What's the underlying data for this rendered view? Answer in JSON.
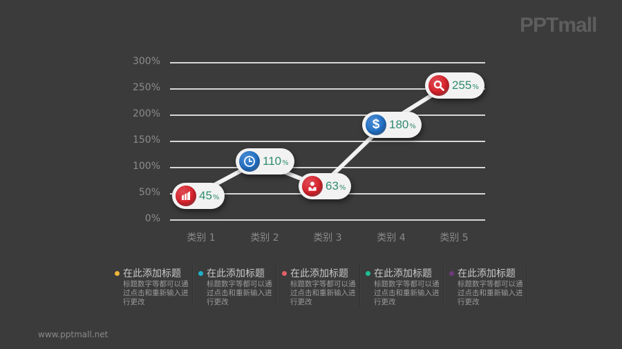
{
  "logo": "PPTmall",
  "footer": "www.pptmall.net",
  "chart_data": {
    "type": "line",
    "title": "",
    "xlabel": "",
    "ylabel": "",
    "categories": [
      "类别 1",
      "类别 2",
      "类别 3",
      "类别 4",
      "类别 5"
    ],
    "values": [
      45,
      110,
      63,
      180,
      255
    ],
    "value_labels": [
      "45",
      "110",
      "63",
      "180",
      "255"
    ],
    "value_suffix": "%",
    "yticks": [
      "300%",
      "250%",
      "200%",
      "150%",
      "100%",
      "50%",
      "0%"
    ],
    "ylim": [
      0,
      300
    ],
    "grid": true,
    "legend_position": "none",
    "markers": [
      {
        "icon": "chart-growth-icon",
        "color": "#d8202a"
      },
      {
        "icon": "clock-icon",
        "color": "#1f6fc6"
      },
      {
        "icon": "person-icon",
        "color": "#d8202a"
      },
      {
        "icon": "dollar-icon",
        "color": "#1f6fc6"
      },
      {
        "icon": "search-icon",
        "color": "#d8202a"
      }
    ]
  },
  "legend": [
    {
      "title": "在此添加标题",
      "desc": "标题数字等都可以通过点击和重新输入进行更改",
      "color": "#f2b53a"
    },
    {
      "title": "在此添加标题",
      "desc": "标题数字等都可以通过点击和重新输入进行更改",
      "color": "#1fb1c9"
    },
    {
      "title": "在此添加标题",
      "desc": "标题数字等都可以通过点击和重新输入进行更改",
      "color": "#e0606a"
    },
    {
      "title": "在此添加标题",
      "desc": "标题数字等都可以通过点击和重新输入进行更改",
      "color": "#1fbf95"
    },
    {
      "title": "在此添加标题",
      "desc": "标题数字等都可以通过点击和重新输入进行更改",
      "color": "#6e3a7a"
    }
  ]
}
